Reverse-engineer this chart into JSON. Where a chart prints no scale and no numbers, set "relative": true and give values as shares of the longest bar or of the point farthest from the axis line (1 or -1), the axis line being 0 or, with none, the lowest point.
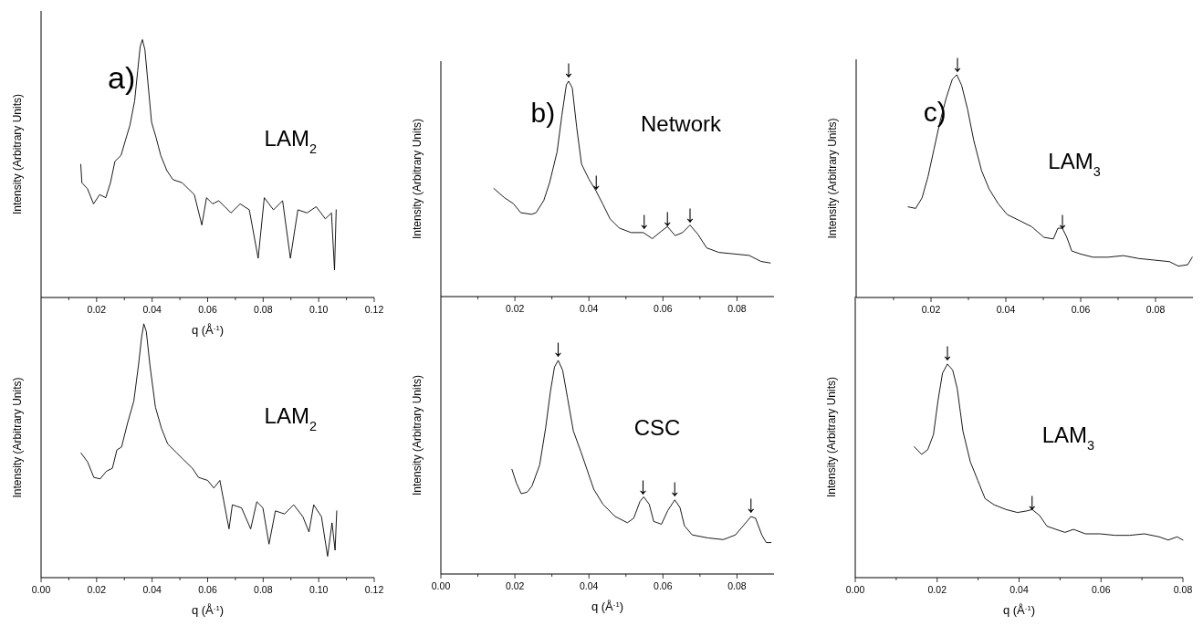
{
  "chart_data": [
    {
      "type": "line",
      "relative": true,
      "tick_labels": "x",
      "xlabel": "q (Å$^{-1}$)",
      "ylabel": "Intensity (Arbitrary Units)",
      "xlim": [
        0,
        0.12
      ],
      "xticks": [
        {
          "value": 0.01,
          "label": null
        },
        0.02,
        {
          "value": 0.03,
          "label": null
        },
        0.04,
        {
          "value": 0.05,
          "label": null
        },
        0.06,
        {
          "value": 0.07,
          "label": null
        },
        0.08,
        {
          "value": 0.09,
          "label": null
        },
        {
          "value": 0.1,
          "label": "0.10"
        },
        {
          "value": 0.11,
          "label": null
        },
        0.12
      ],
      "series": [
        {
          "color": "#000000",
          "x": [
            0.0143,
            0.0147,
            0.0167,
            0.0189,
            0.0211,
            0.0233,
            0.025,
            0.0266,
            0.0288,
            0.0304,
            0.032,
            0.0337,
            0.0348,
            0.0357,
            0.0365,
            0.0374,
            0.0385,
            0.0398,
            0.0414,
            0.0431,
            0.0453,
            0.0475,
            0.0508,
            0.053,
            0.0552,
            0.0579,
            0.0596,
            0.0618,
            0.064,
            0.0662,
            0.0684,
            0.0717,
            0.075,
            0.0782,
            0.0804,
            0.0837,
            0.087,
            0.0898,
            0.0925,
            0.0958,
            0.0991,
            0.1024,
            0.1046,
            0.1057,
            0.1063
          ],
          "values": [
            0.516,
            0.445,
            0.422,
            0.363,
            0.399,
            0.387,
            0.445,
            0.528,
            0.551,
            0.61,
            0.668,
            0.762,
            0.879,
            0.973,
            1,
            0.961,
            0.832,
            0.68,
            0.621,
            0.551,
            0.492,
            0.457,
            0.445,
            0.422,
            0.399,
            0.281,
            0.387,
            0.363,
            0.375,
            0.352,
            0.328,
            0.363,
            0.34,
            0.152,
            0.387,
            0.34,
            0.375,
            0.152,
            0.34,
            0.328,
            0.352,
            0.305,
            0.328,
            0.106,
            0.34
          ]
        }
      ],
      "annotations": [
        "a)",
        "LAM$_{2}$"
      ]
    },
    {
      "type": "line",
      "relative": true,
      "tick_labels": "x",
      "xlabel": "q (Å$^{-1}$)",
      "ylabel": "Intensity (Arbitrary Units)",
      "xlim": [
        0,
        0.12
      ],
      "xticks": [
        {
          "value": 0,
          "label": "0.00"
        },
        {
          "value": 0.01,
          "label": null
        },
        0.02,
        {
          "value": 0.03,
          "label": null
        },
        0.04,
        {
          "value": 0.05,
          "label": null
        },
        0.06,
        {
          "value": 0.07,
          "label": null
        },
        0.08,
        {
          "value": 0.09,
          "label": null
        },
        {
          "value": 0.1,
          "label": "0.10"
        },
        {
          "value": 0.11,
          "label": null
        },
        0.12
      ],
      "series": [
        {
          "color": "#000000",
          "x": [
            0.0144,
            0.0168,
            0.019,
            0.0213,
            0.0235,
            0.0257,
            0.0273,
            0.029,
            0.0312,
            0.0334,
            0.0351,
            0.0362,
            0.037,
            0.0379,
            0.0392,
            0.0412,
            0.0434,
            0.0456,
            0.0489,
            0.0511,
            0.0545,
            0.0567,
            0.06,
            0.0622,
            0.0644,
            0.0677,
            0.0689,
            0.0722,
            0.0755,
            0.0777,
            0.0799,
            0.0821,
            0.0844,
            0.0877,
            0.091,
            0.0943,
            0.0965,
            0.0982,
            0.101,
            0.1032,
            0.1048,
            0.1059,
            0.1065
          ],
          "values": [
            0.491,
            0.455,
            0.395,
            0.389,
            0.419,
            0.431,
            0.503,
            0.515,
            0.611,
            0.695,
            0.838,
            0.946,
            1,
            0.97,
            0.838,
            0.671,
            0.587,
            0.527,
            0.491,
            0.467,
            0.431,
            0.395,
            0.383,
            0.353,
            0.383,
            0.192,
            0.287,
            0.275,
            0.192,
            0.299,
            0.275,
            0.132,
            0.263,
            0.251,
            0.287,
            0.24,
            0.18,
            0.287,
            0.24,
            0.084,
            0.216,
            0.108,
            0.263
          ]
        }
      ],
      "annotations": [
        "LAM$_{2}$"
      ]
    },
    {
      "type": "line",
      "relative": true,
      "tick_labels": "x",
      "ylabel": "Intensity (Arbitrary Units)",
      "xlim": [
        0,
        0.09
      ],
      "xticks": [
        {
          "value": 0.01,
          "label": null
        },
        0.02,
        {
          "value": 0.03,
          "label": null
        },
        0.04,
        {
          "value": 0.05,
          "label": null
        },
        0.06,
        {
          "value": 0.07,
          "label": null
        },
        0.08
      ],
      "series": [
        {
          "color": "#000000",
          "x": [
            0.0143,
            0.0171,
            0.0196,
            0.0216,
            0.0245,
            0.0257,
            0.0278,
            0.0294,
            0.0314,
            0.0327,
            0.0339,
            0.0345,
            0.0355,
            0.0367,
            0.038,
            0.04,
            0.042,
            0.0437,
            0.0457,
            0.0482,
            0.0514,
            0.0547,
            0.0571,
            0.0596,
            0.0612,
            0.0633,
            0.0653,
            0.0673,
            0.0694,
            0.0718,
            0.0751,
            0.0792,
            0.0833,
            0.0865,
            0.089
          ],
          "values": [
            0.502,
            0.46,
            0.431,
            0.389,
            0.382,
            0.389,
            0.446,
            0.53,
            0.672,
            0.842,
            0.983,
            1,
            0.969,
            0.785,
            0.615,
            0.545,
            0.488,
            0.431,
            0.361,
            0.318,
            0.297,
            0.297,
            0.269,
            0.304,
            0.325,
            0.283,
            0.297,
            0.332,
            0.29,
            0.226,
            0.205,
            0.198,
            0.191,
            0.163,
            0.156
          ]
        }
      ],
      "annotations": [
        "b)",
        "Network",
        {
          "text": "↓",
          "x": 0.0345,
          "y": 1.02
        },
        {
          "text": "↓",
          "x": 0.042,
          "y": 0.5
        },
        {
          "text": "↓",
          "x": 0.0549,
          "y": 0.318
        },
        {
          "text": "↓",
          "x": 0.0612,
          "y": 0.332
        },
        {
          "text": "↓",
          "x": 0.0673,
          "y": 0.347
        }
      ]
    },
    {
      "type": "line",
      "relative": true,
      "tick_labels": "x",
      "xlabel": "q (Å$^{-1}$)",
      "ylabel": "Intensity (Arbitrary Units)",
      "xlim": [
        0,
        0.09
      ],
      "xticks": [
        {
          "value": 0,
          "label": "0.00"
        },
        {
          "value": 0.01,
          "label": null
        },
        0.02,
        {
          "value": 0.03,
          "label": null
        },
        0.04,
        {
          "value": 0.05,
          "label": null
        },
        0.06,
        {
          "value": 0.07,
          "label": null
        },
        0.08
      ],
      "series": [
        {
          "color": "#000000",
          "x": [
            0.0192,
            0.0204,
            0.0217,
            0.0233,
            0.0246,
            0.0267,
            0.0283,
            0.0296,
            0.0307,
            0.0317,
            0.0329,
            0.0342,
            0.0358,
            0.0379,
            0.0396,
            0.0413,
            0.0438,
            0.0471,
            0.0504,
            0.0521,
            0.0538,
            0.0548,
            0.0563,
            0.0575,
            0.0596,
            0.0613,
            0.0632,
            0.0646,
            0.0658,
            0.0679,
            0.0721,
            0.0763,
            0.0796,
            0.0817,
            0.0838,
            0.085,
            0.0867,
            0.0879,
            0.0892
          ],
          "values": [
            0.49,
            0.426,
            0.376,
            0.383,
            0.411,
            0.511,
            0.683,
            0.854,
            0.969,
            1,
            0.954,
            0.826,
            0.669,
            0.569,
            0.483,
            0.397,
            0.326,
            0.269,
            0.24,
            0.261,
            0.34,
            0.361,
            0.326,
            0.246,
            0.233,
            0.297,
            0.347,
            0.311,
            0.226,
            0.183,
            0.169,
            0.161,
            0.183,
            0.226,
            0.269,
            0.261,
            0.183,
            0.147,
            0.147
          ]
        }
      ],
      "annotations": [
        "CSC",
        {
          "text": "↓",
          "x": 0.0317,
          "y": 1.019
        },
        {
          "text": "↓",
          "x": 0.0546,
          "y": 0.376
        },
        {
          "text": "↓",
          "x": 0.0632,
          "y": 0.366
        },
        {
          "text": "↓",
          "x": 0.0838,
          "y": 0.29
        }
      ]
    },
    {
      "type": "line",
      "relative": true,
      "tick_labels": "x",
      "ylabel": "Intensity (Arbitrary Units)",
      "xlim": [
        0,
        0.09
      ],
      "xticks": [
        {
          "value": 0.01,
          "label": null
        },
        0.02,
        {
          "value": 0.03,
          "label": null
        },
        0.04,
        {
          "value": 0.05,
          "label": null
        },
        0.06,
        {
          "value": 0.07,
          "label": null
        },
        0.08
      ],
      "series": [
        {
          "color": "#000000",
          "x": [
            0.0139,
            0.0159,
            0.0176,
            0.0192,
            0.0208,
            0.0224,
            0.0241,
            0.0257,
            0.0269,
            0.0282,
            0.0298,
            0.0314,
            0.0335,
            0.0355,
            0.038,
            0.0404,
            0.0437,
            0.0469,
            0.0502,
            0.0527,
            0.0539,
            0.0551,
            0.0563,
            0.0576,
            0.06,
            0.0633,
            0.0673,
            0.0714,
            0.0755,
            0.0796,
            0.0837,
            0.0861,
            0.0886,
            0.0898
          ],
          "values": [
            0.407,
            0.4,
            0.447,
            0.543,
            0.666,
            0.789,
            0.898,
            0.98,
            1,
            0.952,
            0.843,
            0.707,
            0.57,
            0.488,
            0.42,
            0.372,
            0.345,
            0.318,
            0.27,
            0.263,
            0.311,
            0.311,
            0.27,
            0.209,
            0.195,
            0.181,
            0.181,
            0.188,
            0.175,
            0.168,
            0.161,
            0.141,
            0.147,
            0.181
          ]
        }
      ],
      "annotations": [
        "c)",
        "LAM$_{3}$",
        {
          "text": "↓",
          "x": 0.0271,
          "y": 1.018
        },
        {
          "text": "↓",
          "x": 0.0551,
          "y": 0.311
        }
      ]
    },
    {
      "type": "line",
      "relative": true,
      "tick_labels": "x",
      "xlabel": "q (Å$^{-1}$)",
      "ylabel": "Intensity (Arbitrary Units)",
      "xlim": [
        0,
        0.08
      ],
      "xticks": [
        {
          "value": 0,
          "label": "0.00"
        },
        {
          "value": 0.01,
          "label": null
        },
        0.02,
        {
          "value": 0.03,
          "label": null
        },
        0.04,
        {
          "value": 0.05,
          "label": null
        },
        0.06,
        {
          "value": 0.07,
          "label": null
        },
        0.08
      ],
      "series": [
        {
          "color": "#000000",
          "x": [
            0.0144,
            0.0162,
            0.0177,
            0.0191,
            0.0202,
            0.0213,
            0.0225,
            0.0238,
            0.0249,
            0.0263,
            0.0281,
            0.0299,
            0.0317,
            0.0339,
            0.0368,
            0.0396,
            0.0418,
            0.0432,
            0.045,
            0.0468,
            0.049,
            0.0512,
            0.0533,
            0.0562,
            0.0598,
            0.0634,
            0.067,
            0.0706,
            0.0742,
            0.0764,
            0.0786,
            0.08
          ],
          "values": [
            0.613,
            0.577,
            0.599,
            0.67,
            0.828,
            0.957,
            1,
            0.971,
            0.885,
            0.685,
            0.542,
            0.456,
            0.37,
            0.341,
            0.319,
            0.305,
            0.312,
            0.319,
            0.291,
            0.241,
            0.226,
            0.212,
            0.226,
            0.205,
            0.205,
            0.198,
            0.198,
            0.205,
            0.191,
            0.176,
            0.191,
            0.176
          ]
        }
      ],
      "annotations": [
        "LAM$_{3}$",
        {
          "text": "↓",
          "x": 0.0225,
          "y": 1.021
        },
        {
          "text": "↓",
          "x": 0.0432,
          "y": 0.319
        }
      ]
    }
  ]
}
